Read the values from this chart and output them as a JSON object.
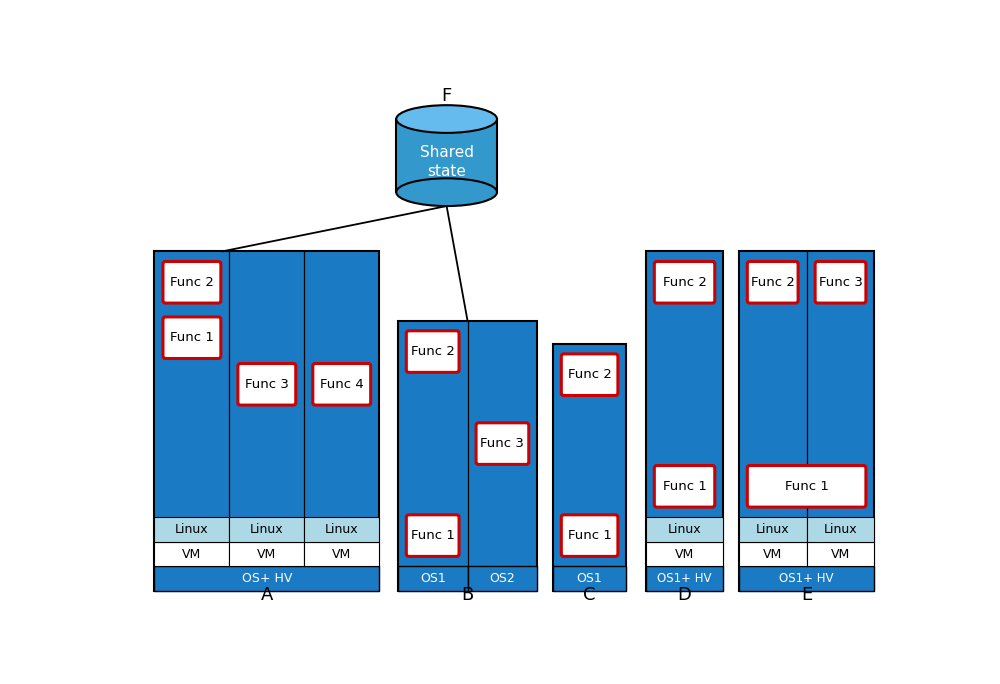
{
  "blue_mid": "#1A7BC4",
  "blue_light": "#ADD8E6",
  "white": "#FFFFFF",
  "red_border": "#CC0000",
  "black": "#000000",
  "bg": "#FFFFFF",
  "label_A": "A",
  "label_B": "B",
  "label_C": "C",
  "label_D": "D",
  "label_E": "E",
  "label_F": "F",
  "shared_state_text": "Shared\nstate",
  "col_A_bottom_label": "OS+ HV",
  "col_B_label1": "OS1",
  "col_B_label2": "OS2",
  "col_C_bottom_label": "OS1",
  "col_D_bottom_label": "OS1+ HV",
  "col_E_bottom_label": "OS1+ HV",
  "cyl_body_color": "#3399CC",
  "cyl_top_color": "#66BBEE",
  "fig_w": 10.0,
  "fig_h": 6.84,
  "dpi": 100
}
